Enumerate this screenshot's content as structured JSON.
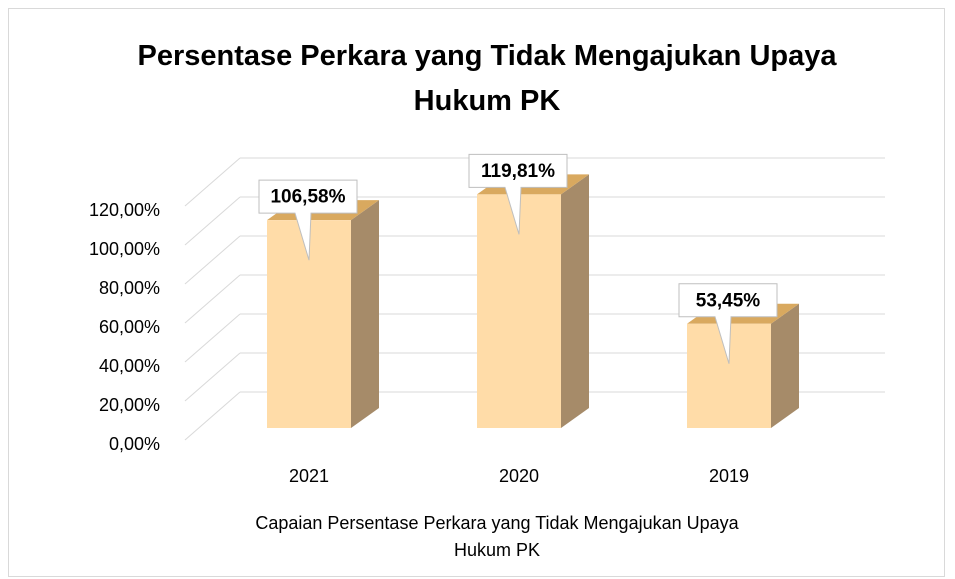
{
  "chart_data": {
    "type": "bar3d",
    "title": "Persentase Perkara yang Tidak Mengajukan Upaya Hukum PK",
    "x_label": "Capaian Persentase Perkara yang Tidak Mengajukan Upaya Hukum PK",
    "categories": [
      "2021",
      "2020",
      "2019"
    ],
    "values": [
      106.58,
      119.81,
      53.45
    ],
    "value_labels": [
      "106,58%",
      "119,81%",
      "53,45%"
    ],
    "color": "#ffdca8",
    "ylim": [
      0,
      120
    ],
    "yticks": [
      {
        "value": 0,
        "label": "0,00%"
      },
      {
        "value": 20,
        "label": "20,00%"
      },
      {
        "value": 40,
        "label": "40,00%"
      },
      {
        "value": 60,
        "label": "60,00%"
      },
      {
        "value": 80,
        "label": "80,00%"
      },
      {
        "value": 100,
        "label": "100,00%"
      },
      {
        "value": 120,
        "label": "120,00%"
      }
    ],
    "grid": true
  }
}
